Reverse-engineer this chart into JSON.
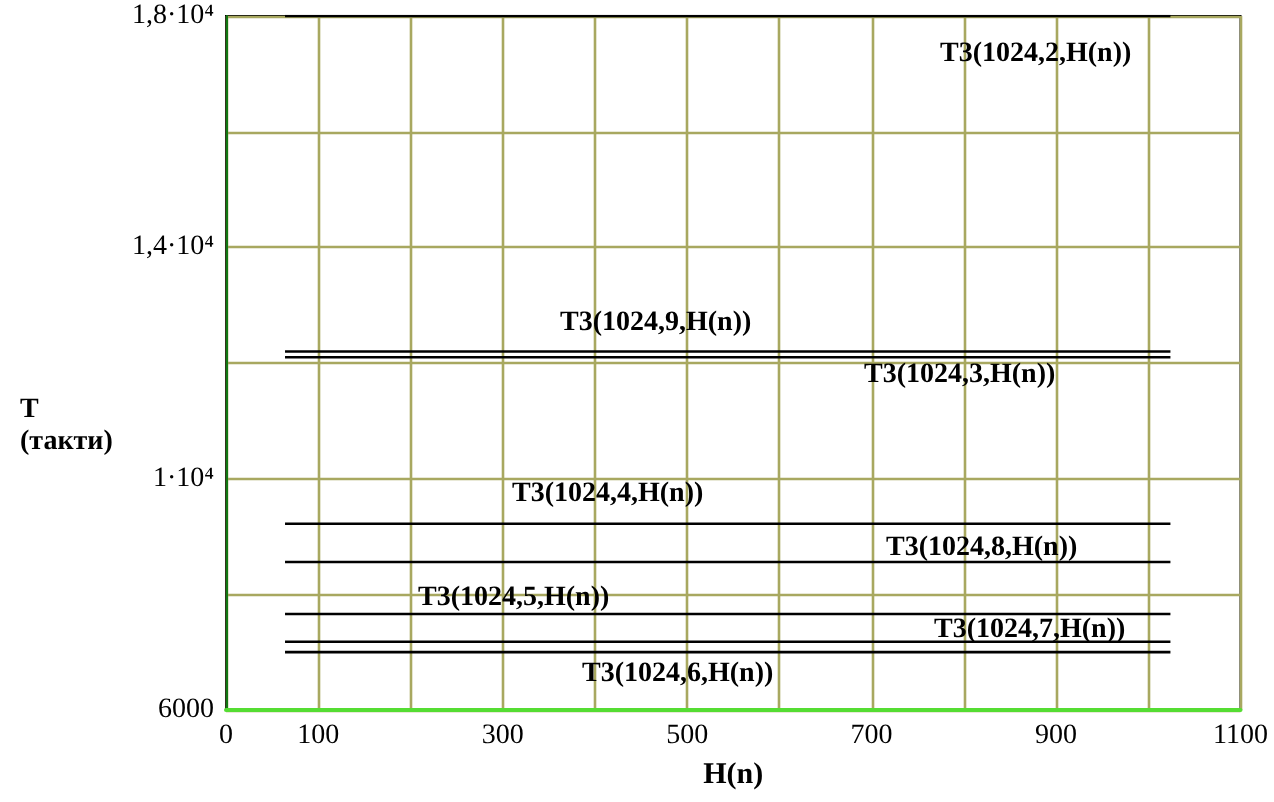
{
  "chart_data": {
    "type": "line",
    "xlabel": "H(n)",
    "ylabel": "T\n(такти)",
    "x": [
      64,
      1024
    ],
    "series": [
      {
        "name": "T3(1024,2,H(n))",
        "color": "#000000",
        "values": [
          18000,
          18000
        ]
      },
      {
        "name": "T3(1024,9,H(n))",
        "color": "#000000",
        "values": [
          12200,
          12200
        ]
      },
      {
        "name": "T3(1024,3,H(n))",
        "color": "#000000",
        "values": [
          12100,
          12100
        ]
      },
      {
        "name": "T3(1024,4,H(n))",
        "color": "#000000",
        "values": [
          9220,
          9220
        ]
      },
      {
        "name": "T3(1024,8,H(n))",
        "color": "#000000",
        "values": [
          8560,
          8560
        ]
      },
      {
        "name": "T3(1024,5,H(n))",
        "color": "#000000",
        "values": [
          7660,
          7660
        ]
      },
      {
        "name": "T3(1024,7,H(n))",
        "color": "#000000",
        "values": [
          7180,
          7180
        ]
      },
      {
        "name": "T3(1024,6,H(n))",
        "color": "#000000",
        "values": [
          7000,
          7000
        ]
      }
    ],
    "xlim": [
      0,
      1100
    ],
    "xticks": [
      0,
      100,
      {
        "value": 200,
        "label": null
      },
      300,
      {
        "value": 400,
        "label": null
      },
      500,
      {
        "value": 600,
        "label": null
      },
      700,
      {
        "value": 800,
        "label": null
      },
      900,
      {
        "value": 1000,
        "label": null
      },
      1100
    ],
    "ylim": [
      6000,
      18000
    ],
    "yticks": [
      6000,
      {
        "value": 8000,
        "label": null
      },
      {
        "value": 10000,
        "label": "1·10⁴"
      },
      {
        "value": 12000,
        "label": null
      },
      {
        "value": 14000,
        "label": "1,4·10⁴"
      },
      {
        "value": 16000,
        "label": null
      },
      {
        "value": 18000,
        "label": "1,8·10⁴"
      }
    ],
    "grid": true,
    "legend": false,
    "marker": "none",
    "line_style": "solid"
  }
}
